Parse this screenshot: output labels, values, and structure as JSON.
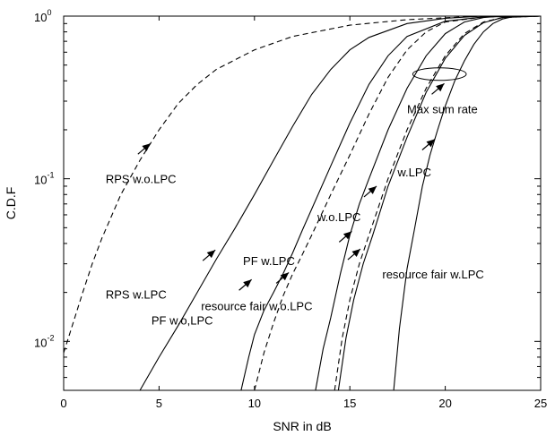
{
  "chart_data": {
    "type": "line",
    "xlabel": "SNR in dB",
    "ylabel": "C.D.F",
    "xlim": [
      0,
      25
    ],
    "ylim": [
      0.005,
      1
    ],
    "y_scale": "log",
    "x_ticks": [
      {
        "value": 0,
        "label": "0"
      },
      {
        "value": 5,
        "label": "5"
      },
      {
        "value": 10,
        "label": "10"
      },
      {
        "value": 15,
        "label": "15"
      },
      {
        "value": 20,
        "label": "20"
      },
      {
        "value": 25,
        "label": "25"
      }
    ],
    "y_ticks": [
      {
        "value": 0.01,
        "base": "10",
        "exp": "-2"
      },
      {
        "value": 0.1,
        "base": "10",
        "exp": "-1"
      },
      {
        "value": 1,
        "base": "10",
        "exp": "0"
      }
    ],
    "grid": false,
    "series": [
      {
        "style": "dashed",
        "x": [
          0,
          0.5,
          1,
          1.5,
          2,
          3,
          4,
          5,
          6,
          7,
          8,
          10,
          12,
          15,
          18,
          21,
          22,
          25
        ],
        "y": [
          0.0085,
          0.013,
          0.02,
          0.03,
          0.043,
          0.08,
          0.13,
          0.2,
          0.29,
          0.38,
          0.47,
          0.62,
          0.75,
          0.88,
          0.95,
          0.99,
          1,
          1
        ]
      },
      {
        "style": "solid",
        "x": [
          4,
          5,
          6,
          7,
          8,
          9,
          10,
          11,
          12,
          13,
          14,
          15,
          16,
          18,
          20,
          22,
          25
        ],
        "y": [
          0.005,
          0.008,
          0.0125,
          0.02,
          0.032,
          0.05,
          0.08,
          0.13,
          0.21,
          0.33,
          0.47,
          0.62,
          0.74,
          0.9,
          0.97,
          1,
          1
        ]
      },
      {
        "style": "solid",
        "x": [
          9.3,
          9.7,
          10,
          10.5,
          11,
          11.5,
          12,
          12.5,
          13,
          14,
          15,
          16,
          17,
          18,
          20,
          22,
          25
        ],
        "y": [
          0.005,
          0.008,
          0.011,
          0.0155,
          0.02,
          0.026,
          0.035,
          0.048,
          0.065,
          0.12,
          0.22,
          0.38,
          0.57,
          0.75,
          0.93,
          0.99,
          1
        ]
      },
      {
        "style": "dashed",
        "x": [
          10,
          10.5,
          11,
          11.5,
          12,
          12.5,
          13,
          14,
          15,
          16,
          17,
          18,
          19,
          20,
          22,
          25
        ],
        "y": [
          0.005,
          0.0085,
          0.013,
          0.019,
          0.026,
          0.034,
          0.045,
          0.08,
          0.14,
          0.25,
          0.42,
          0.62,
          0.8,
          0.92,
          0.99,
          1
        ]
      },
      {
        "style": "solid",
        "x": [
          13.2,
          13.6,
          14,
          14.5,
          15,
          15.5,
          16,
          17,
          18,
          19,
          20,
          21,
          22,
          23,
          25
        ],
        "y": [
          0.005,
          0.009,
          0.014,
          0.026,
          0.045,
          0.07,
          0.1,
          0.2,
          0.36,
          0.57,
          0.78,
          0.92,
          0.98,
          1,
          1
        ]
      },
      {
        "style": "dashed",
        "x": [
          14.2,
          14.6,
          15,
          15.5,
          16,
          17,
          18,
          19,
          20,
          21,
          22,
          23,
          25
        ],
        "y": [
          0.005,
          0.0105,
          0.018,
          0.03,
          0.045,
          0.1,
          0.2,
          0.36,
          0.57,
          0.78,
          0.92,
          0.98,
          1
        ]
      },
      {
        "style": "solid",
        "x": [
          14.4,
          14.8,
          15.2,
          15.7,
          16.2,
          17,
          18,
          19,
          20,
          21,
          22,
          23,
          25
        ],
        "y": [
          0.005,
          0.0105,
          0.018,
          0.03,
          0.045,
          0.09,
          0.18,
          0.34,
          0.55,
          0.76,
          0.91,
          0.98,
          1
        ]
      },
      {
        "style": "solid",
        "x": [
          17.3,
          17.6,
          18,
          18.4,
          18.8,
          19.2,
          19.6,
          20,
          20.5,
          21,
          21.5,
          22,
          22.5,
          23,
          23.5,
          25
        ],
        "y": [
          0.005,
          0.012,
          0.028,
          0.05,
          0.09,
          0.14,
          0.2,
          0.28,
          0.4,
          0.53,
          0.67,
          0.8,
          0.9,
          0.96,
          0.99,
          1
        ]
      }
    ],
    "annotations": [
      {
        "text": "RPS w.o.LPC",
        "tx": 2.2,
        "ty": 0.1,
        "ax": 4.55,
        "ay": 0.165
      },
      {
        "text": "RPS w.LPC",
        "tx": 2.2,
        "ty": 0.0195,
        "ax": 7.95,
        "ay": 0.0365
      },
      {
        "text": "PF w.o,LPC",
        "tx": 4.6,
        "ty": 0.0135,
        "ax": 9.85,
        "ay": 0.024
      },
      {
        "text": "PF w.LPC",
        "tx": 9.4,
        "ty": 0.0315,
        "ax": 15.1,
        "ay": 0.0475
      },
      {
        "text": "resource fair w.o.LPC",
        "tx": 7.2,
        "ty": 0.0166,
        "ax": 11.8,
        "ay": 0.0265
      },
      {
        "text": "resource fair w.LPC",
        "tx": 16.7,
        "ty": 0.026,
        "ax": 15.55,
        "ay": 0.037
      },
      {
        "text": "w.o.LPC",
        "tx": 13.3,
        "ty": 0.0585,
        "ax": 16.4,
        "ay": 0.09
      },
      {
        "text": "w.LPC",
        "tx": 17.5,
        "ty": 0.11,
        "ax": 19.45,
        "ay": 0.175
      },
      {
        "text": "Max sum rate",
        "tx": 18,
        "ty": 0.27,
        "ax": 19.95,
        "ay": 0.385
      }
    ],
    "ellipse": {
      "cx": 19.7,
      "cy": 0.44,
      "rx": 1.4
    }
  }
}
